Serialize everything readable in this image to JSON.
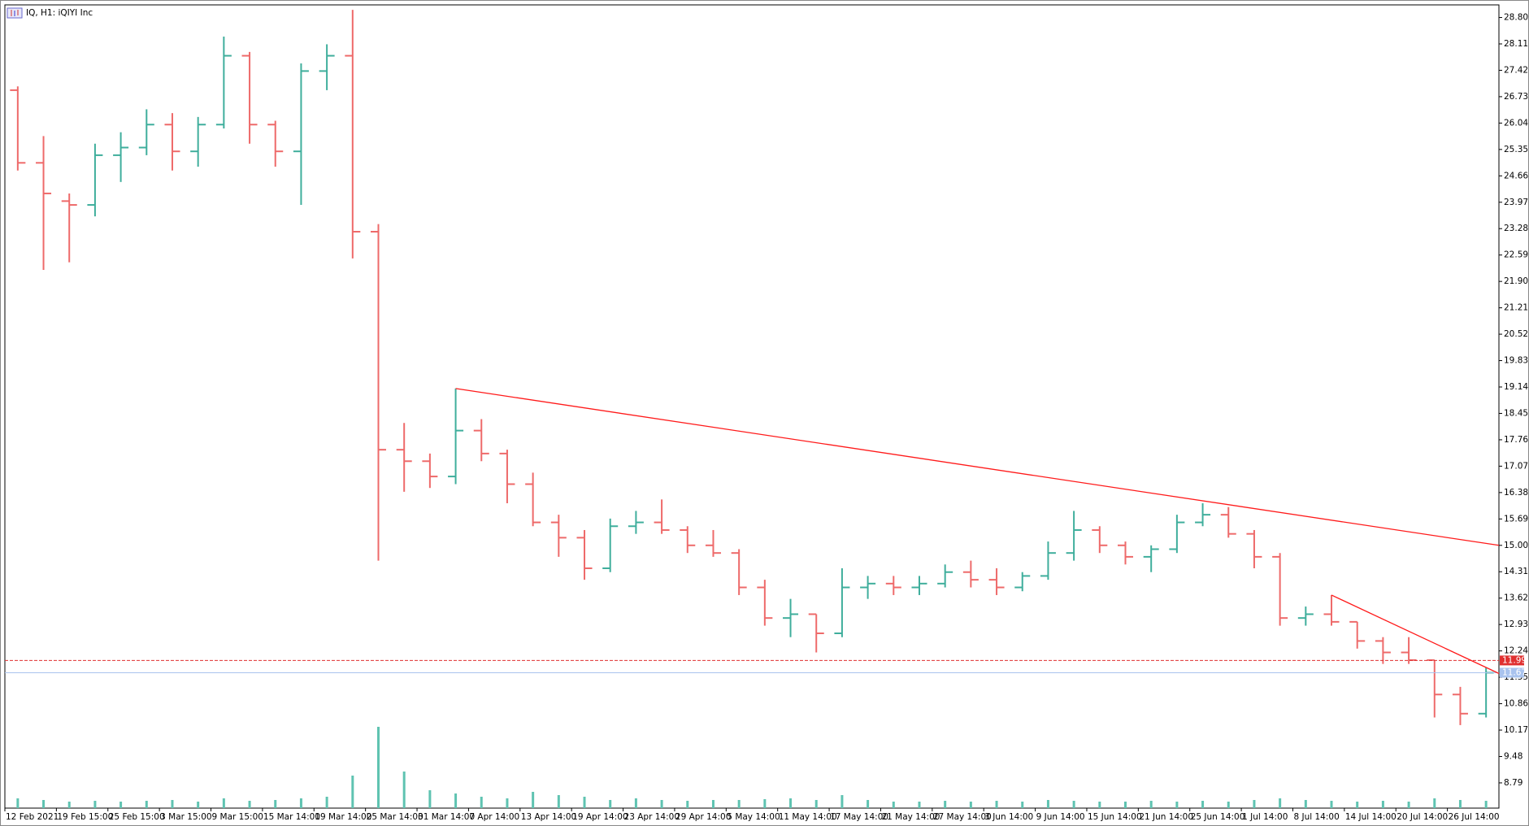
{
  "chart_data": {
    "type": "ohlc",
    "title": "IQ, H1:  iQIYI Inc",
    "categories": [
      "12 Feb 2021",
      null,
      "19 Feb 15:00",
      null,
      "25 Feb 15:00",
      null,
      "3 Mar 15:00",
      null,
      "9 Mar 15:00",
      null,
      "15 Mar 14:00",
      null,
      "19 Mar 14:00",
      null,
      "25 Mar 14:00",
      null,
      "31 Mar 14:00",
      null,
      "7 Apr 14:00",
      null,
      "13 Apr 14:00",
      null,
      "19 Apr 14:00",
      null,
      "23 Apr 14:00",
      null,
      "29 Apr 14:00",
      null,
      "5 May 14:00",
      null,
      "11 May 14:00",
      null,
      "17 May 14:00",
      null,
      "21 May 14:00",
      null,
      "27 May 14:00",
      null,
      "3 Jun 14:00",
      null,
      "9 Jun 14:00",
      null,
      "15 Jun 14:00",
      null,
      "21 Jun 14:00",
      null,
      "25 Jun 14:00",
      null,
      "1 Jul 14:00",
      null,
      "8 Jul 14:00",
      null,
      "14 Jul 14:00",
      null,
      "20 Jul 14:00",
      null,
      "26 Jul 14:00",
      null
    ],
    "open": [
      26.9,
      25.0,
      24.0,
      23.9,
      25.2,
      25.4,
      26.0,
      25.3,
      26.0,
      27.8,
      26.0,
      25.3,
      27.4,
      27.8,
      23.2,
      17.5,
      17.2,
      16.8,
      18.0,
      17.4,
      16.6,
      15.6,
      15.2,
      14.4,
      15.5,
      15.6,
      15.4,
      15.0,
      14.8,
      13.9,
      13.1,
      13.2,
      12.7,
      13.9,
      14.0,
      13.9,
      14.0,
      14.3,
      14.1,
      13.9,
      14.2,
      14.8,
      15.4,
      15.0,
      14.7,
      14.9,
      15.6,
      15.8,
      15.3,
      14.7,
      13.1,
      13.2,
      13.0,
      12.5,
      12.2,
      12.0,
      11.1,
      10.6
    ],
    "high": [
      27.0,
      25.7,
      24.2,
      25.5,
      25.8,
      26.4,
      26.3,
      26.2,
      28.3,
      27.9,
      26.1,
      27.6,
      28.1,
      29.0,
      23.4,
      18.2,
      17.4,
      19.1,
      18.3,
      17.5,
      16.9,
      15.8,
      15.4,
      15.7,
      15.9,
      16.2,
      15.5,
      15.4,
      14.9,
      14.1,
      13.6,
      13.2,
      14.4,
      14.2,
      14.2,
      14.2,
      14.5,
      14.6,
      14.4,
      14.3,
      15.1,
      15.9,
      15.5,
      15.1,
      15.0,
      15.8,
      16.1,
      16.0,
      15.4,
      14.8,
      13.4,
      13.7,
      13.0,
      12.6,
      12.6,
      12.0,
      11.3,
      11.8
    ],
    "low": [
      24.8,
      22.2,
      22.4,
      23.6,
      24.5,
      25.2,
      24.8,
      24.9,
      25.9,
      25.5,
      24.9,
      23.9,
      26.9,
      22.5,
      14.6,
      16.4,
      16.5,
      16.6,
      17.2,
      16.1,
      15.5,
      14.7,
      14.1,
      14.3,
      15.3,
      15.3,
      14.8,
      14.7,
      13.7,
      12.9,
      12.6,
      12.2,
      12.6,
      13.6,
      13.7,
      13.7,
      13.9,
      13.9,
      13.7,
      13.8,
      14.1,
      14.6,
      14.8,
      14.5,
      14.3,
      14.8,
      15.5,
      15.2,
      14.4,
      12.9,
      12.9,
      12.9,
      12.3,
      11.9,
      11.9,
      10.5,
      10.3,
      10.5
    ],
    "close": [
      25.0,
      24.2,
      23.9,
      25.2,
      25.4,
      26.0,
      25.3,
      26.0,
      27.8,
      26.0,
      25.3,
      27.4,
      27.8,
      23.2,
      17.5,
      17.2,
      16.8,
      18.0,
      17.4,
      16.6,
      15.6,
      15.2,
      14.4,
      15.5,
      15.6,
      15.4,
      15.0,
      14.8,
      13.9,
      13.1,
      13.2,
      12.7,
      13.9,
      14.0,
      13.9,
      14.0,
      14.3,
      14.1,
      13.9,
      14.2,
      14.8,
      15.4,
      15.0,
      14.7,
      14.9,
      15.6,
      15.8,
      15.3,
      14.7,
      13.1,
      13.2,
      13.0,
      12.5,
      12.2,
      12.0,
      11.1,
      10.6,
      11.67
    ],
    "volumes": [
      12,
      10,
      8,
      9,
      8,
      9,
      10,
      8,
      12,
      9,
      10,
      12,
      14,
      40,
      100,
      45,
      22,
      18,
      14,
      12,
      20,
      16,
      14,
      10,
      12,
      10,
      9,
      10,
      10,
      11,
      12,
      10,
      16,
      10,
      8,
      8,
      9,
      8,
      9,
      8,
      10,
      9,
      8,
      8,
      9,
      8,
      9,
      8,
      10,
      12,
      10,
      9,
      8,
      9,
      8,
      12,
      10,
      9
    ],
    "up_color": "#3fae9c",
    "down_color": "#ee6a6a",
    "volume_color": "#5fc3b1",
    "ylim": [
      8.13,
      29.13
    ],
    "yticks": [
      {
        "value": 28.8,
        "label": "28.80"
      },
      {
        "value": 28.11,
        "label": "28.11"
      },
      {
        "value": 27.42,
        "label": "27.42"
      },
      {
        "value": 26.73,
        "label": "26.73"
      },
      {
        "value": 26.04,
        "label": "26.04"
      },
      {
        "value": 25.35,
        "label": "25.35"
      },
      {
        "value": 24.66,
        "label": "24.66"
      },
      {
        "value": 23.97,
        "label": "23.97"
      },
      {
        "value": 23.28,
        "label": "23.28"
      },
      {
        "value": 22.59,
        "label": "22.59"
      },
      {
        "value": 21.9,
        "label": "21.90"
      },
      {
        "value": 21.21,
        "label": "21.21"
      },
      {
        "value": 20.52,
        "label": "20.52"
      },
      {
        "value": 19.83,
        "label": "19.83"
      },
      {
        "value": 19.14,
        "label": "19.14"
      },
      {
        "value": 18.45,
        "label": "18.45"
      },
      {
        "value": 17.76,
        "label": "17.76"
      },
      {
        "value": 17.07,
        "label": "17.07"
      },
      {
        "value": 16.38,
        "label": "16.38"
      },
      {
        "value": 15.69,
        "label": "15.69"
      },
      {
        "value": 15.0,
        "label": "15.00"
      },
      {
        "value": 14.31,
        "label": "14.31"
      },
      {
        "value": 13.62,
        "label": "13.62"
      },
      {
        "value": 12.93,
        "label": "12.93"
      },
      {
        "value": 12.24,
        "label": "12.24"
      },
      {
        "value": 11.55,
        "label": "11.55"
      },
      {
        "value": 10.86,
        "label": "10.86"
      },
      {
        "value": 10.17,
        "label": "10.17"
      },
      {
        "value": 9.48,
        "label": "9.48"
      },
      {
        "value": 8.79,
        "label": "8.79"
      }
    ],
    "hlines": [
      {
        "value": 11.99,
        "color": "#e03030",
        "style": "dashed"
      },
      {
        "value": 11.67,
        "color": "#a9c3ee",
        "style": "solid"
      }
    ],
    "trendlines": [
      {
        "color": "#ff1a1a",
        "x": [
          17,
          57.5
        ],
        "y": [
          19.1,
          15.0
        ]
      },
      {
        "color": "#ff1a1a",
        "x": [
          51,
          57.5
        ],
        "y": [
          13.7,
          11.65
        ]
      }
    ]
  }
}
